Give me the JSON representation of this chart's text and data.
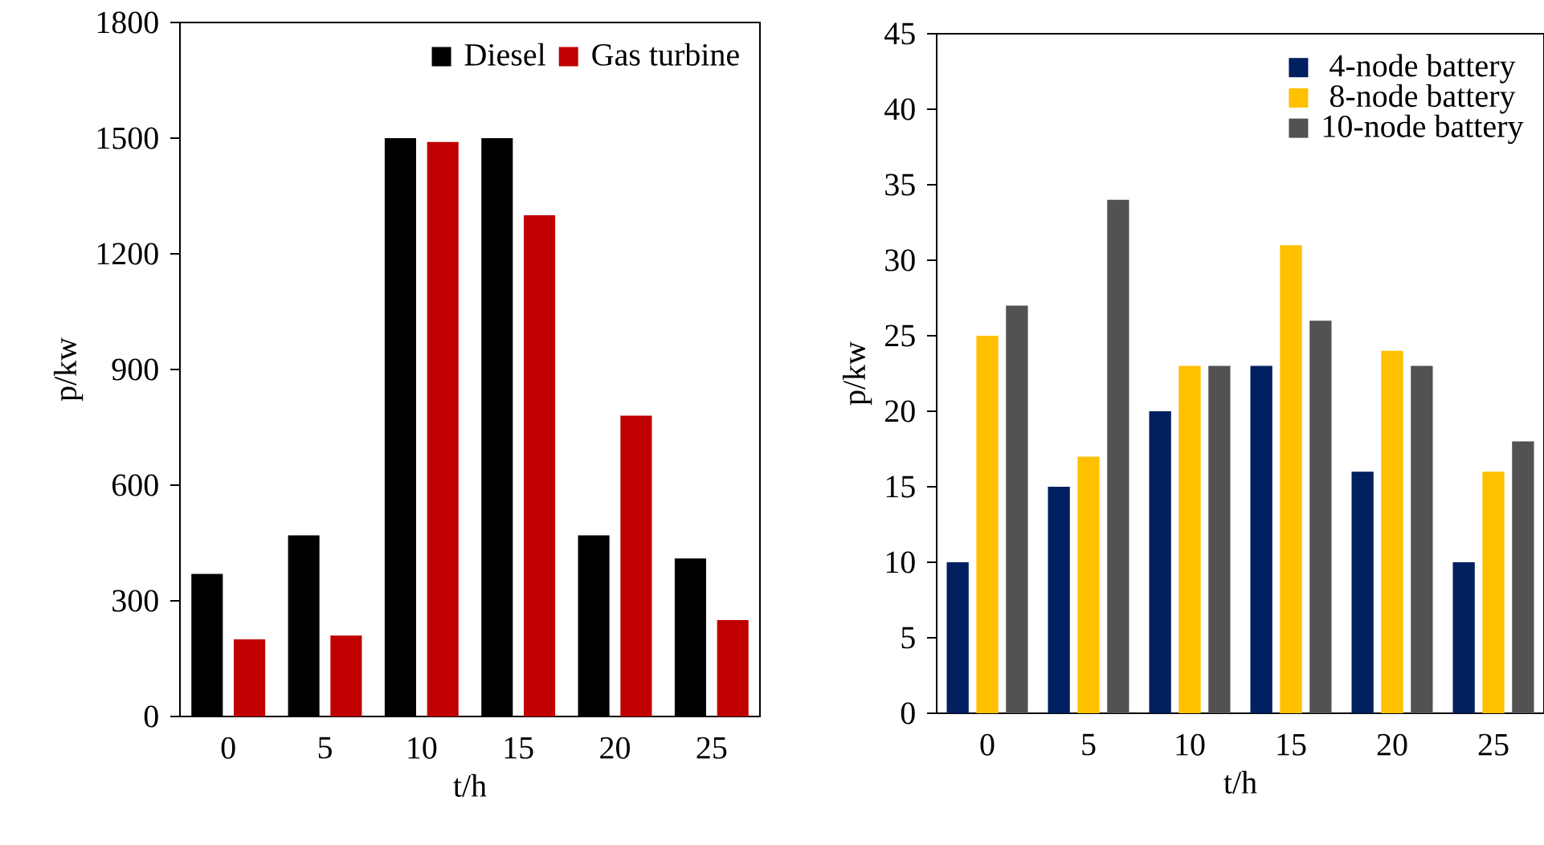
{
  "chart_data": [
    {
      "type": "bar",
      "xlabel": "t/h",
      "ylabel": "p/kw",
      "categories": [
        "0",
        "5",
        "10",
        "15",
        "20",
        "25"
      ],
      "ylim": [
        0,
        1800
      ],
      "yticks": [
        0,
        300,
        600,
        900,
        1200,
        1500,
        1800
      ],
      "legend": "top right",
      "grid": false,
      "series": [
        {
          "name": "Diesel",
          "color": "#000000",
          "values": [
            370,
            470,
            1500,
            1500,
            470,
            410
          ]
        },
        {
          "name": "Gas turbine",
          "color": "#c00000",
          "values": [
            200,
            210,
            1490,
            1300,
            780,
            250
          ]
        }
      ]
    },
    {
      "type": "bar",
      "xlabel": "t/h",
      "ylabel": "p/kw",
      "categories": [
        "0",
        "5",
        "10",
        "15",
        "20",
        "25"
      ],
      "ylim": [
        0,
        45
      ],
      "yticks": [
        0,
        5,
        10,
        15,
        20,
        25,
        30,
        35,
        40,
        45
      ],
      "legend": "top right",
      "grid": false,
      "series": [
        {
          "name": "4-node battery",
          "color": "#002060",
          "values": [
            10,
            15,
            20,
            23,
            16,
            10
          ]
        },
        {
          "name": "8-node battery",
          "color": "#ffc000",
          "values": [
            25,
            17,
            23,
            31,
            24,
            16
          ]
        },
        {
          "name": "10-node battery",
          "color": "#525252",
          "values": [
            27,
            34,
            23,
            26,
            23,
            18
          ]
        }
      ]
    }
  ]
}
